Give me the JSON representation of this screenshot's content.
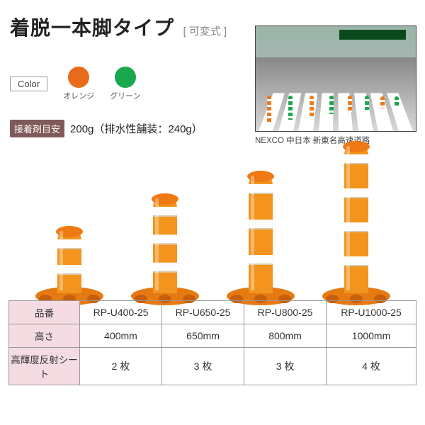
{
  "title": "着脱一本脚タイプ",
  "subtitle": "[ 可変式 ]",
  "color_label": "Color",
  "colors": [
    {
      "name": "オレンジ",
      "hex": "#e86a1a"
    },
    {
      "name": "グリーン",
      "hex": "#1aa84e"
    }
  ],
  "adhesive_label": "接着剤目安",
  "adhesive_text": "200g（排水性舗装：240g）",
  "photo_caption": "NEXCO 中日本 新東名高速道路",
  "cones": [
    {
      "model": "RP-U400-25",
      "height_mm": "400mm",
      "sheets": "2 枚",
      "body_h": 92,
      "stripes": 2
    },
    {
      "model": "RP-U650-25",
      "height_mm": "650mm",
      "sheets": "3 枚",
      "body_h": 138,
      "stripes": 3
    },
    {
      "model": "RP-U800-25",
      "height_mm": "800mm",
      "sheets": "3 枚",
      "body_h": 170,
      "stripes": 3
    },
    {
      "model": "RP-U1000-25",
      "height_mm": "1000mm",
      "sheets": "4 枚",
      "body_h": 212,
      "stripes": 4
    }
  ],
  "row_labels": {
    "model": "品番",
    "height": "高さ",
    "sheets": "高輝度反射シート"
  },
  "style": {
    "cone_body_color": "#f2941e",
    "cone_cap_color": "#ef7a14",
    "cone_stripe_color": "#fdfdfd",
    "cone_base_color": "#e67a12",
    "cone_base_dark": "#c55f0a",
    "cone_width": 34
  }
}
